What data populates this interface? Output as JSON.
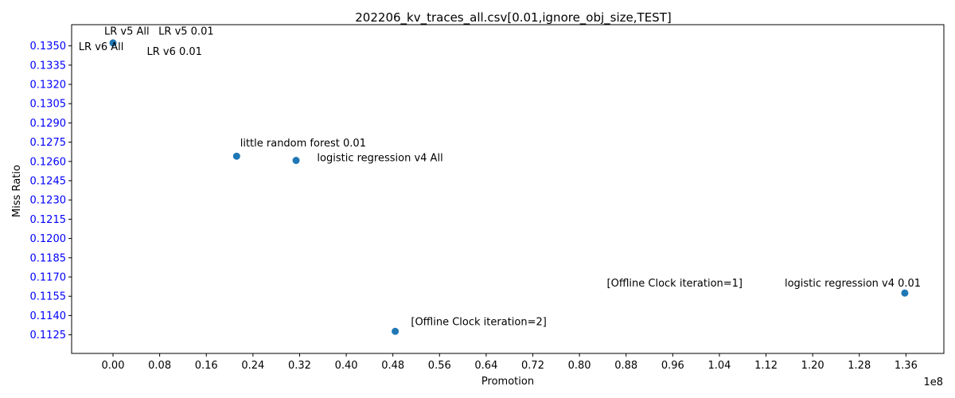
{
  "chart_data": {
    "type": "scatter",
    "title": "202206_kv_traces_all.csv[0.01,ignore_obj_size,TEST]",
    "xlabel": "Promotion",
    "ylabel": "Miss Ratio",
    "x_offset_label": "1e8",
    "x_ticks": [
      "0.00",
      "0.08",
      "0.16",
      "0.24",
      "0.32",
      "0.40",
      "0.48",
      "0.56",
      "0.64",
      "0.72",
      "0.80",
      "0.88",
      "0.96",
      "1.04",
      "1.12",
      "1.20",
      "1.28",
      "1.36"
    ],
    "y_ticks": [
      "0.1125",
      "0.1140",
      "0.1155",
      "0.1170",
      "0.1185",
      "0.1200",
      "0.1215",
      "0.1230",
      "0.1245",
      "0.1260",
      "0.1275",
      "0.1290",
      "0.1305",
      "0.1320",
      "0.1335",
      "0.1350"
    ],
    "xlim": [
      -0.071,
      1.425
    ],
    "ylim": [
      0.11105,
      0.13665
    ],
    "x_tick_step": 0.08,
    "y_tick_step": 0.0015,
    "marker_color": "#1f77b4",
    "y_tick_color": "#0000ff",
    "points": [
      {
        "x": 0.0,
        "y": 0.13523
      },
      {
        "x": 0.212,
        "y": 0.12641
      },
      {
        "x": 0.314,
        "y": 0.12608
      },
      {
        "x": 0.484,
        "y": 0.11277
      },
      {
        "x": 1.358,
        "y": 0.11575
      }
    ],
    "annotations": [
      {
        "text": "LR v5 All",
        "x": -0.015,
        "y": 0.13589,
        "anchor": "start"
      },
      {
        "text": "LR v5 0.01",
        "x": 0.078,
        "y": 0.13589,
        "anchor": "start"
      },
      {
        "text": "LR v6 All",
        "x": -0.059,
        "y": 0.13468,
        "anchor": "start"
      },
      {
        "text": "LR v6 0.01",
        "x": 0.058,
        "y": 0.13428,
        "anchor": "start"
      },
      {
        "text": "little random forest 0.01",
        "x": 0.218,
        "y": 0.12718,
        "anchor": "start"
      },
      {
        "text": "logistic regression v4 All",
        "x": 0.35,
        "y": 0.12601,
        "anchor": "start"
      },
      {
        "text": "[Offline Clock iteration=2]",
        "x": 0.511,
        "y": 0.11326,
        "anchor": "start"
      },
      {
        "text": "[Offline Clock iteration=1]",
        "x": 0.847,
        "y": 0.11627,
        "anchor": "start"
      },
      {
        "text": "logistic regression v4 0.01",
        "x": 1.152,
        "y": 0.11627,
        "anchor": "start"
      }
    ]
  }
}
